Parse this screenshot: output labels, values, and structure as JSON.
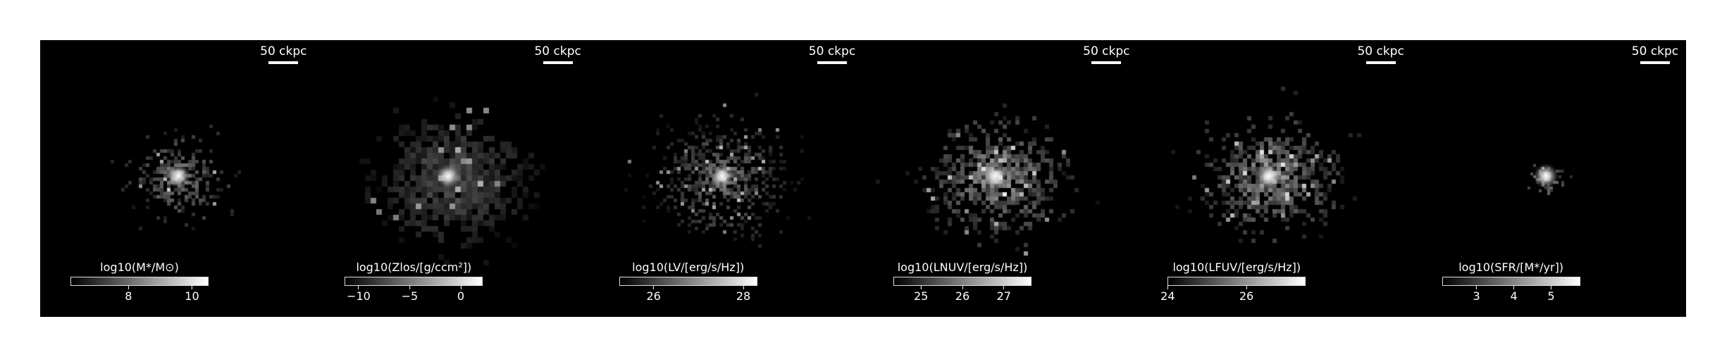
{
  "scale_bar_label": "50 ckpc",
  "panels": [
    {
      "colorbar_label": "log10(M*/M⊙)",
      "ticks": [
        {
          "value": "8",
          "frac": 0.42
        },
        {
          "value": "10",
          "frac": 0.88
        }
      ]
    },
    {
      "colorbar_label": "log10(Zlos/[g/ccm²])",
      "ticks": [
        {
          "value": "−10",
          "frac": 0.1
        },
        {
          "value": "−5",
          "frac": 0.47
        },
        {
          "value": "0",
          "frac": 0.84
        }
      ]
    },
    {
      "colorbar_label": "log10(LV/[erg/s/Hz])",
      "ticks": [
        {
          "value": "26",
          "frac": 0.25
        },
        {
          "value": "28",
          "frac": 0.9
        }
      ]
    },
    {
      "colorbar_label": "log10(LNUV/[erg/s/Hz])",
      "ticks": [
        {
          "value": "25",
          "frac": 0.2
        },
        {
          "value": "26",
          "frac": 0.5
        },
        {
          "value": "27",
          "frac": 0.8
        }
      ]
    },
    {
      "colorbar_label": "log10(LFUV/[erg/s/Hz])",
      "ticks": [
        {
          "value": "24",
          "frac": 0.0
        },
        {
          "value": "26",
          "frac": 0.57
        }
      ]
    },
    {
      "colorbar_label": "log10(SFR/[M*/yr])",
      "ticks": [
        {
          "value": "3",
          "frac": 0.25
        },
        {
          "value": "4",
          "frac": 0.52
        },
        {
          "value": "5",
          "frac": 0.79
        }
      ]
    }
  ],
  "colors": {
    "background": "#000000",
    "foreground": "#ffffff"
  }
}
